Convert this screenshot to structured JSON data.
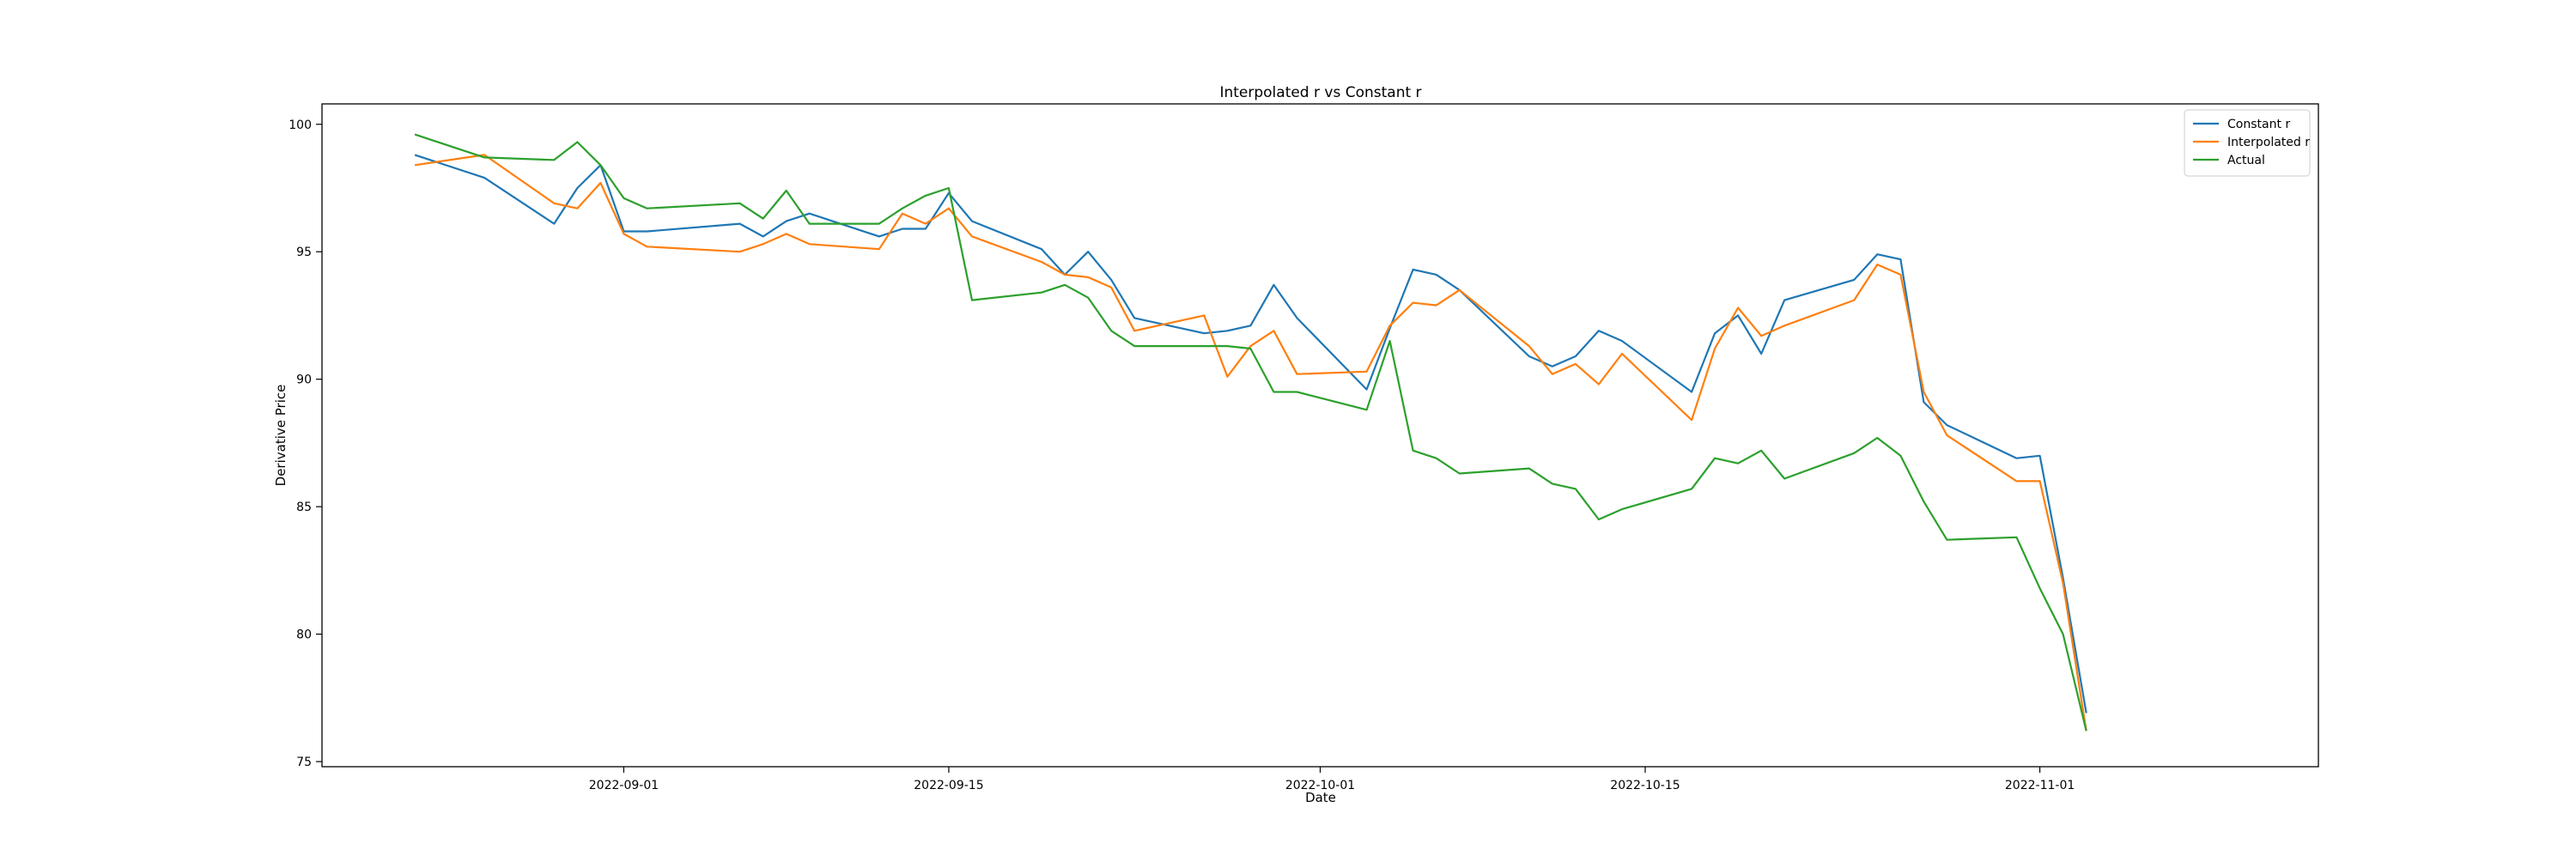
{
  "chart_data": {
    "type": "line",
    "title": "Interpolated r vs Constant r",
    "xlabel": "Date",
    "ylabel": "Derivative Price",
    "x_ticks": [
      "2022-09-01",
      "2022-09-15",
      "2022-10-01",
      "2022-10-15",
      "2022-11-01"
    ],
    "y_ticks": [
      "75",
      "80",
      "85",
      "90",
      "95",
      "100"
    ],
    "xlim": [
      "2022-08-19",
      "2022-11-13"
    ],
    "ylim": [
      74.8,
      100.8
    ],
    "legend_position": "top-right",
    "grid": false,
    "x": [
      "2022-08-23",
      "2022-08-26",
      "2022-08-29",
      "2022-08-30",
      "2022-08-31",
      "2022-09-01",
      "2022-09-02",
      "2022-09-06",
      "2022-09-07",
      "2022-09-08",
      "2022-09-09",
      "2022-09-12",
      "2022-09-13",
      "2022-09-14",
      "2022-09-15",
      "2022-09-16",
      "2022-09-19",
      "2022-09-20",
      "2022-09-21",
      "2022-09-22",
      "2022-09-23",
      "2022-09-26",
      "2022-09-27",
      "2022-09-28",
      "2022-09-29",
      "2022-09-30",
      "2022-10-03",
      "2022-10-04",
      "2022-10-05",
      "2022-10-06",
      "2022-10-07",
      "2022-10-10",
      "2022-10-11",
      "2022-10-12",
      "2022-10-13",
      "2022-10-14",
      "2022-10-17",
      "2022-10-18",
      "2022-10-19",
      "2022-10-20",
      "2022-10-21",
      "2022-10-24",
      "2022-10-25",
      "2022-10-26",
      "2022-10-27",
      "2022-10-28",
      "2022-10-31",
      "2022-11-01",
      "2022-11-02",
      "2022-11-03"
    ],
    "series": [
      {
        "name": "Constant r",
        "color": "#1f77b4",
        "values": [
          98.8,
          97.9,
          96.1,
          97.5,
          98.4,
          95.8,
          95.8,
          96.1,
          95.6,
          96.2,
          96.5,
          95.6,
          95.9,
          95.9,
          97.3,
          96.2,
          95.1,
          94.1,
          95.0,
          93.9,
          92.4,
          91.8,
          91.9,
          92.1,
          93.7,
          92.4,
          89.6,
          92.0,
          94.3,
          94.1,
          93.5,
          90.9,
          90.5,
          90.9,
          91.9,
          91.5,
          89.5,
          91.8,
          92.5,
          91.0,
          93.1,
          93.9,
          94.9,
          94.7,
          89.1,
          88.2,
          86.9,
          87.0,
          82.2,
          76.9
        ]
      },
      {
        "name": "Interpolated r",
        "color": "#ff7f0e",
        "values": [
          98.4,
          98.8,
          96.9,
          96.7,
          97.7,
          95.7,
          95.2,
          95.0,
          95.3,
          95.7,
          95.3,
          95.1,
          96.5,
          96.1,
          96.7,
          95.6,
          94.6,
          94.1,
          94.0,
          93.6,
          91.9,
          92.5,
          90.1,
          91.3,
          91.9,
          90.2,
          90.3,
          92.1,
          93.0,
          92.9,
          93.5,
          91.3,
          90.2,
          90.6,
          89.8,
          91.0,
          88.4,
          91.2,
          92.8,
          91.7,
          92.1,
          93.1,
          94.5,
          94.1,
          89.5,
          87.8,
          86.0,
          86.0,
          82.0,
          76.2
        ]
      },
      {
        "name": "Actual",
        "color": "#2ca02c",
        "values": [
          99.6,
          98.7,
          98.6,
          99.3,
          98.4,
          97.1,
          96.7,
          96.9,
          96.3,
          97.4,
          96.1,
          96.1,
          96.7,
          97.2,
          97.5,
          93.1,
          93.4,
          93.7,
          93.2,
          91.9,
          91.3,
          91.3,
          91.3,
          91.2,
          89.5,
          89.5,
          88.8,
          91.5,
          87.2,
          86.9,
          86.3,
          86.5,
          85.9,
          85.7,
          84.5,
          84.9,
          85.7,
          86.9,
          86.7,
          87.2,
          86.1,
          87.1,
          87.7,
          87.0,
          85.2,
          83.7,
          83.8,
          81.8,
          80.0,
          76.2
        ]
      }
    ]
  }
}
